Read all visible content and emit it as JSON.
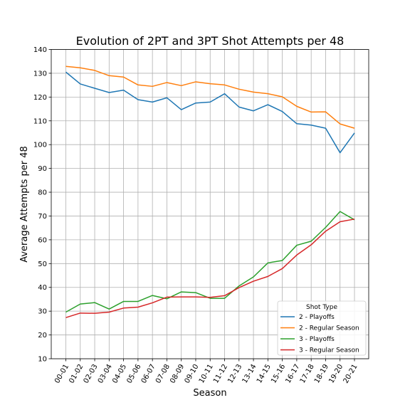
{
  "chart_data": {
    "type": "line",
    "title": "Evolution of 2PT and 3PT Shot Attempts per 48",
    "xlabel": "Season",
    "ylabel": "Average Attempts per 48",
    "ylim": [
      10,
      140
    ],
    "yticks": [
      10,
      20,
      30,
      40,
      50,
      60,
      70,
      80,
      90,
      100,
      110,
      120,
      130,
      140
    ],
    "grid": true,
    "categories": [
      "00-01",
      "01-02",
      "02-03",
      "03-04",
      "04-05",
      "05-06",
      "06-07",
      "07-08",
      "08-09",
      "09-10",
      "10-11",
      "11-12",
      "12-13",
      "13-14",
      "14-15",
      "15-16",
      "16-17",
      "17-18",
      "18-19",
      "19-20",
      "20-21"
    ],
    "legend": {
      "title": "Shot Type",
      "placement": "lower-right"
    },
    "series": [
      {
        "name": "2 - Playoffs",
        "color": "#1f77b4",
        "values": [
          130.5,
          125.5,
          123.7,
          121.9,
          122.9,
          118.9,
          117.9,
          119.7,
          114.7,
          117.5,
          117.9,
          121.4,
          115.8,
          114.2,
          116.8,
          113.9,
          108.8,
          108.2,
          106.9,
          96.6,
          104.9
        ]
      },
      {
        "name": "2 - Regular Season",
        "color": "#ff7f0e",
        "values": [
          132.9,
          132.3,
          131.2,
          129.0,
          128.4,
          125.1,
          124.5,
          126.1,
          124.8,
          126.4,
          125.6,
          125.1,
          123.3,
          122.1,
          121.4,
          120.1,
          116.1,
          113.7,
          113.8,
          108.7,
          106.9
        ]
      },
      {
        "name": "3 - Playoffs",
        "color": "#2ca02c",
        "values": [
          29.6,
          33.0,
          33.6,
          30.9,
          34.1,
          34.1,
          36.6,
          35.2,
          38.1,
          37.8,
          35.4,
          35.4,
          40.6,
          44.4,
          50.3,
          51.3,
          57.7,
          59.4,
          65.2,
          71.9,
          68.4
        ]
      },
      {
        "name": "3 - Regular Season",
        "color": "#d62728",
        "values": [
          27.3,
          29.2,
          29.1,
          29.6,
          31.3,
          31.7,
          33.5,
          35.9,
          36.0,
          36.0,
          35.8,
          36.5,
          39.9,
          42.6,
          44.6,
          47.9,
          53.6,
          57.9,
          63.6,
          67.6,
          68.7
        ]
      }
    ]
  }
}
